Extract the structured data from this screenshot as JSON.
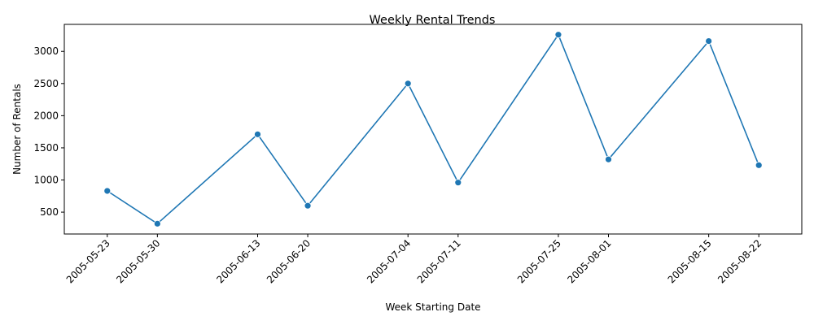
{
  "chart_data": {
    "type": "line",
    "title": "Weekly Rental Trends",
    "xlabel": "Week Starting Date",
    "ylabel": "Number of Rentals",
    "x": [
      "2005-05-23",
      "2005-05-30",
      "2005-06-13",
      "2005-06-20",
      "2005-07-04",
      "2005-07-11",
      "2005-07-25",
      "2005-08-01",
      "2005-08-15",
      "2005-08-22"
    ],
    "series": [
      {
        "values": [
          830,
          320,
          1710,
          600,
          2500,
          960,
          3260,
          1320,
          3160,
          1230
        ]
      }
    ],
    "yticks": [
      500,
      1000,
      1500,
      2000,
      2500,
      3000
    ],
    "ylim": [
      160,
      3420
    ],
    "xlim": [
      "2005-05-17",
      "2005-08-28"
    ],
    "grid": false,
    "line_color": "#1f77b4"
  }
}
